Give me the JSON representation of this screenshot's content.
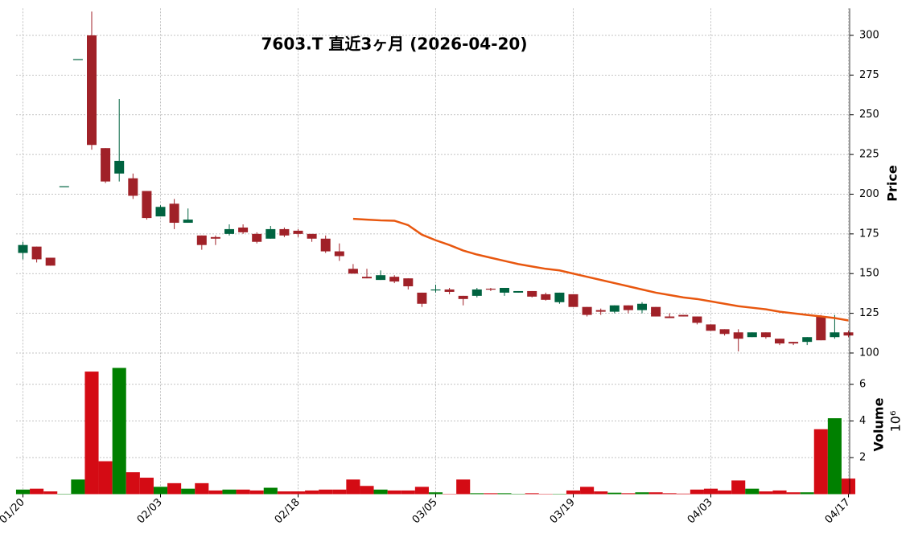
{
  "chart_data": {
    "type": "candlestick",
    "title": "7603.T  直近3ヶ月  (2026-04-20)",
    "categories": [
      "01/20",
      null,
      null,
      null,
      null,
      null,
      null,
      null,
      null,
      null,
      "02/03",
      null,
      null,
      null,
      null,
      null,
      null,
      null,
      null,
      null,
      "02/18",
      null,
      null,
      null,
      null,
      null,
      null,
      null,
      null,
      null,
      "03/05",
      null,
      null,
      null,
      null,
      null,
      null,
      null,
      null,
      null,
      "03/19",
      null,
      null,
      null,
      null,
      null,
      null,
      null,
      null,
      null,
      "04/03",
      null,
      null,
      null,
      null,
      null,
      null,
      null,
      null,
      null,
      "04/17"
    ],
    "open": [
      163,
      167,
      160,
      205,
      285,
      300,
      229,
      213,
      210,
      202,
      186,
      194,
      182,
      174,
      173,
      175,
      179,
      175,
      172,
      178,
      177,
      175,
      172,
      164,
      153,
      148,
      146,
      148,
      147,
      138,
      140,
      140,
      136,
      136,
      140.5,
      138,
      138,
      139,
      137,
      132,
      137,
      129,
      127,
      126,
      130,
      127,
      129,
      123,
      124,
      123,
      118,
      115,
      113,
      110,
      113,
      109,
      107,
      107,
      123,
      110,
      113
    ],
    "high": [
      170,
      167,
      160,
      205,
      285,
      315,
      229,
      260,
      213,
      202,
      193,
      197,
      191,
      174,
      174,
      181,
      181,
      176,
      180,
      179,
      178,
      175,
      174,
      169,
      156,
      153,
      152,
      149,
      147,
      138,
      143,
      141,
      136,
      141,
      141,
      141,
      139,
      139,
      138,
      138,
      137,
      129,
      128,
      130,
      130,
      132,
      129,
      125,
      124,
      123,
      118,
      115,
      115,
      113,
      113,
      109,
      107,
      110,
      124,
      124,
      114
    ],
    "low": [
      159,
      157,
      155,
      205,
      285,
      228,
      207,
      208,
      197,
      184,
      186,
      178,
      182,
      165,
      168,
      174,
      175,
      169,
      172,
      173,
      173,
      170,
      163,
      158,
      150,
      147,
      146,
      144,
      140,
      129,
      138,
      137,
      130,
      135,
      139,
      136,
      138,
      135,
      133,
      131,
      129,
      123,
      124,
      125,
      125,
      125,
      123,
      122,
      123,
      118,
      114,
      111,
      101,
      110,
      109,
      105,
      105,
      105,
      108,
      109,
      110
    ],
    "close": [
      168,
      159,
      155,
      205,
      285,
      231,
      208,
      221,
      199,
      185,
      192,
      182,
      184,
      168,
      172,
      178,
      176,
      170,
      178,
      174,
      175,
      172,
      164,
      161,
      150,
      147,
      149,
      145,
      142,
      131,
      140,
      138.5,
      134,
      140,
      140,
      141,
      139,
      135.5,
      133.5,
      138,
      129,
      124,
      126,
      130,
      127,
      131,
      123,
      122,
      123,
      119,
      114,
      112,
      109,
      113,
      110,
      106,
      106,
      110,
      108,
      113,
      111
    ],
    "up_color": "#006340",
    "down_color": "#a02128",
    "volume": [
      0.25,
      0.3,
      0.15,
      0.02,
      0.8,
      6.7,
      1.8,
      6.9,
      1.2,
      0.9,
      0.4,
      0.6,
      0.3,
      0.6,
      0.2,
      0.25,
      0.25,
      0.2,
      0.35,
      0.15,
      0.15,
      0.2,
      0.25,
      0.25,
      0.8,
      0.45,
      0.25,
      0.2,
      0.2,
      0.4,
      0.1,
      0.02,
      0.8,
      0.05,
      0.05,
      0.05,
      0.02,
      0.05,
      0.02,
      0.02,
      0.2,
      0.4,
      0.15,
      0.08,
      0.05,
      0.1,
      0.1,
      0.05,
      0.03,
      0.25,
      0.3,
      0.2,
      0.75,
      0.3,
      0.15,
      0.2,
      0.1,
      0.1,
      3.55,
      4.15,
      0.85
    ],
    "volume_up_color": "#008000",
    "volume_down_color": "#d40b14",
    "series": [
      {
        "color": "#e8570f",
        "values": [
          null,
          null,
          null,
          null,
          null,
          null,
          null,
          null,
          null,
          null,
          null,
          null,
          null,
          null,
          null,
          null,
          null,
          null,
          null,
          null,
          null,
          null,
          null,
          null,
          184.5,
          184,
          183.5,
          183.3,
          180.5,
          174.5,
          171,
          168,
          164.5,
          162,
          160,
          158,
          156,
          154.5,
          153,
          152,
          150,
          148,
          146,
          144,
          142,
          140,
          138,
          136.5,
          135,
          134,
          132.5,
          131,
          129.5,
          128.5,
          127.5,
          126,
          125,
          124,
          123,
          122,
          120.5
        ]
      }
    ],
    "ylabel": "Price",
    "ylim": [
      93,
      317
    ],
    "yticks": [
      100,
      125,
      150,
      175,
      200,
      225,
      250,
      275,
      300
    ],
    "y2label": "Volume",
    "y2_exponent": "10⁶",
    "y2lim": [
      0,
      7
    ],
    "y2ticks": [
      2,
      4,
      6
    ],
    "grid": true
  }
}
